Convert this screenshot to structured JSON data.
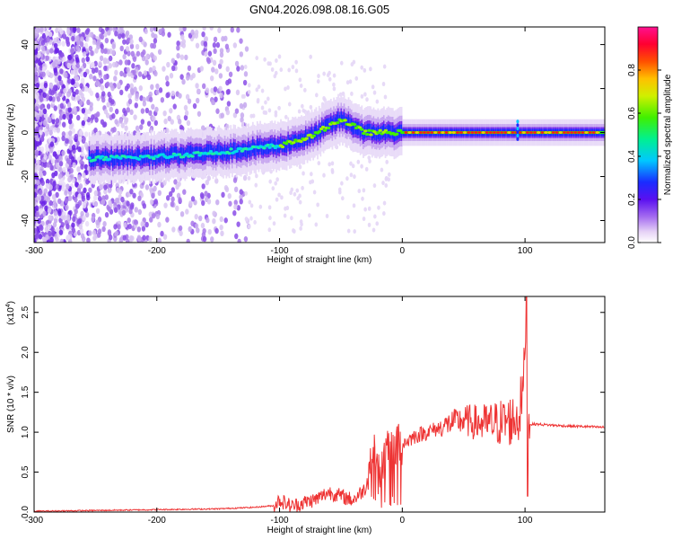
{
  "title": "GN04.2026.098.08.16.G05",
  "chart_data": [
    {
      "type": "heatmap",
      "xlabel": "Height of straight line (km)",
      "ylabel": "Frequency (Hz)",
      "xlim": [
        -300,
        165
      ],
      "ylim": [
        -50,
        48
      ],
      "xticks": [
        -300,
        -200,
        -100,
        0,
        100
      ],
      "yticks": [
        -40,
        -20,
        0,
        20,
        40
      ],
      "colorbar": {
        "label": "Normalized spectral amplitude",
        "range": [
          0,
          1
        ],
        "ticks": [
          0.0,
          0.2,
          0.4,
          0.6,
          0.8
        ],
        "tick_labels": [
          "0.0",
          "0.2",
          "0.4",
          "0.6",
          "0.8"
        ]
      },
      "ridge_track": {
        "height_km": [
          -255,
          -200,
          -150,
          -100,
          -75,
          -60,
          -50,
          -40,
          -30,
          -20,
          0,
          50,
          90,
          100,
          165
        ],
        "frequency_hz": [
          -12,
          -11,
          -9,
          -6,
          -2,
          3,
          6,
          3,
          0,
          0,
          0,
          0,
          0,
          0,
          0
        ]
      }
    },
    {
      "type": "line",
      "xlabel": "Height of straight line (km)",
      "ylabel": "SNR (10 * v/v)",
      "yscale_label": "(x10",
      "yscale_exp": "4",
      "xlim": [
        -300,
        165
      ],
      "ylim": [
        0,
        2.7
      ],
      "xticks": [
        -300,
        -200,
        -100,
        0,
        100
      ],
      "yticks": [
        0.0,
        0.5,
        1.0,
        1.5,
        2.0,
        2.5
      ],
      "ytick_labels": [
        "0.0",
        "0.5",
        "1.0",
        "1.5",
        "2.0",
        "2.5"
      ],
      "color": "#ee3333",
      "series": [
        {
          "x": [
            -300,
            -250,
            -200,
            -150,
            -120,
            -105,
            -100,
            -90,
            -80,
            -70,
            -60,
            -50,
            -40,
            -30,
            -26,
            -24,
            -20,
            -10,
            0,
            10,
            20,
            30,
            40,
            50,
            60,
            70,
            80,
            90,
            95,
            99,
            101,
            103,
            110,
            130,
            150,
            165
          ],
          "y": [
            0.01,
            0.02,
            0.03,
            0.04,
            0.06,
            0.08,
            0.15,
            0.07,
            0.12,
            0.16,
            0.25,
            0.2,
            0.15,
            0.3,
            0.6,
            0.9,
            0.5,
            0.8,
            0.85,
            0.95,
            1.0,
            1.05,
            1.12,
            1.15,
            1.12,
            1.1,
            1.12,
            1.15,
            1.2,
            1.6,
            2.7,
            1.1,
            1.1,
            1.08,
            1.07,
            1.06
          ]
        }
      ]
    }
  ]
}
